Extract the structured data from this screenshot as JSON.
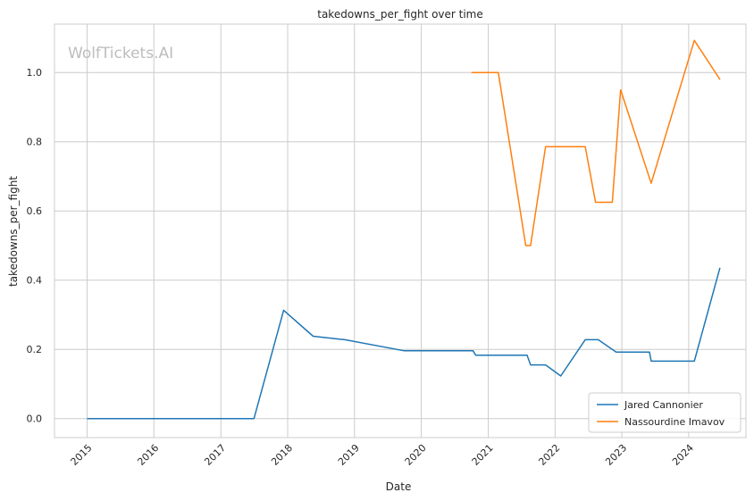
{
  "chart_data": {
    "type": "line",
    "title": "takedowns_per_fight over time",
    "xlabel": "Date",
    "ylabel": "takedowns_per_fight",
    "watermark": "WolfTickets.AI",
    "grid": true,
    "legend_position": "lower-right",
    "xlim": [
      "2014-07-07",
      "2024-11-09"
    ],
    "ylim": [
      -0.055,
      1.14
    ],
    "x_ticks": [
      "2015",
      "2016",
      "2017",
      "2018",
      "2019",
      "2020",
      "2021",
      "2022",
      "2023",
      "2024"
    ],
    "y_ticks": [
      "0.0",
      "0.2",
      "0.4",
      "0.6",
      "0.8",
      "1.0"
    ],
    "series": [
      {
        "name": "Jared Cannonier",
        "color": "#1f77b4",
        "points": [
          [
            "2015-01-01",
            0.0
          ],
          [
            "2017-07-01",
            0.0
          ],
          [
            "2017-12-10",
            0.313
          ],
          [
            "2018-05-20",
            0.238
          ],
          [
            "2018-11-10",
            0.228
          ],
          [
            "2019-09-30",
            0.196
          ],
          [
            "2020-10-10",
            0.196
          ],
          [
            "2020-10-25",
            0.183
          ],
          [
            "2021-08-01",
            0.183
          ],
          [
            "2021-08-20",
            0.155
          ],
          [
            "2021-11-10",
            0.155
          ],
          [
            "2022-02-01",
            0.123
          ],
          [
            "2022-06-15",
            0.228
          ],
          [
            "2022-08-25",
            0.228
          ],
          [
            "2022-12-01",
            0.192
          ],
          [
            "2023-06-01",
            0.192
          ],
          [
            "2023-06-10",
            0.166
          ],
          [
            "2024-02-01",
            0.166
          ],
          [
            "2024-06-20",
            0.436
          ]
        ]
      },
      {
        "name": "Nassourdine Imavov",
        "color": "#ff7f0e",
        "points": [
          [
            "2020-10-01",
            1.0
          ],
          [
            "2021-02-25",
            1.0
          ],
          [
            "2021-07-25",
            0.5
          ],
          [
            "2021-08-20",
            0.5
          ],
          [
            "2021-11-10",
            0.786
          ],
          [
            "2022-06-15",
            0.786
          ],
          [
            "2022-08-10",
            0.625
          ],
          [
            "2022-11-10",
            0.625
          ],
          [
            "2022-12-25",
            0.95
          ],
          [
            "2023-06-10",
            0.68
          ],
          [
            "2024-02-01",
            1.093
          ],
          [
            "2024-06-20",
            0.98
          ]
        ]
      }
    ]
  }
}
